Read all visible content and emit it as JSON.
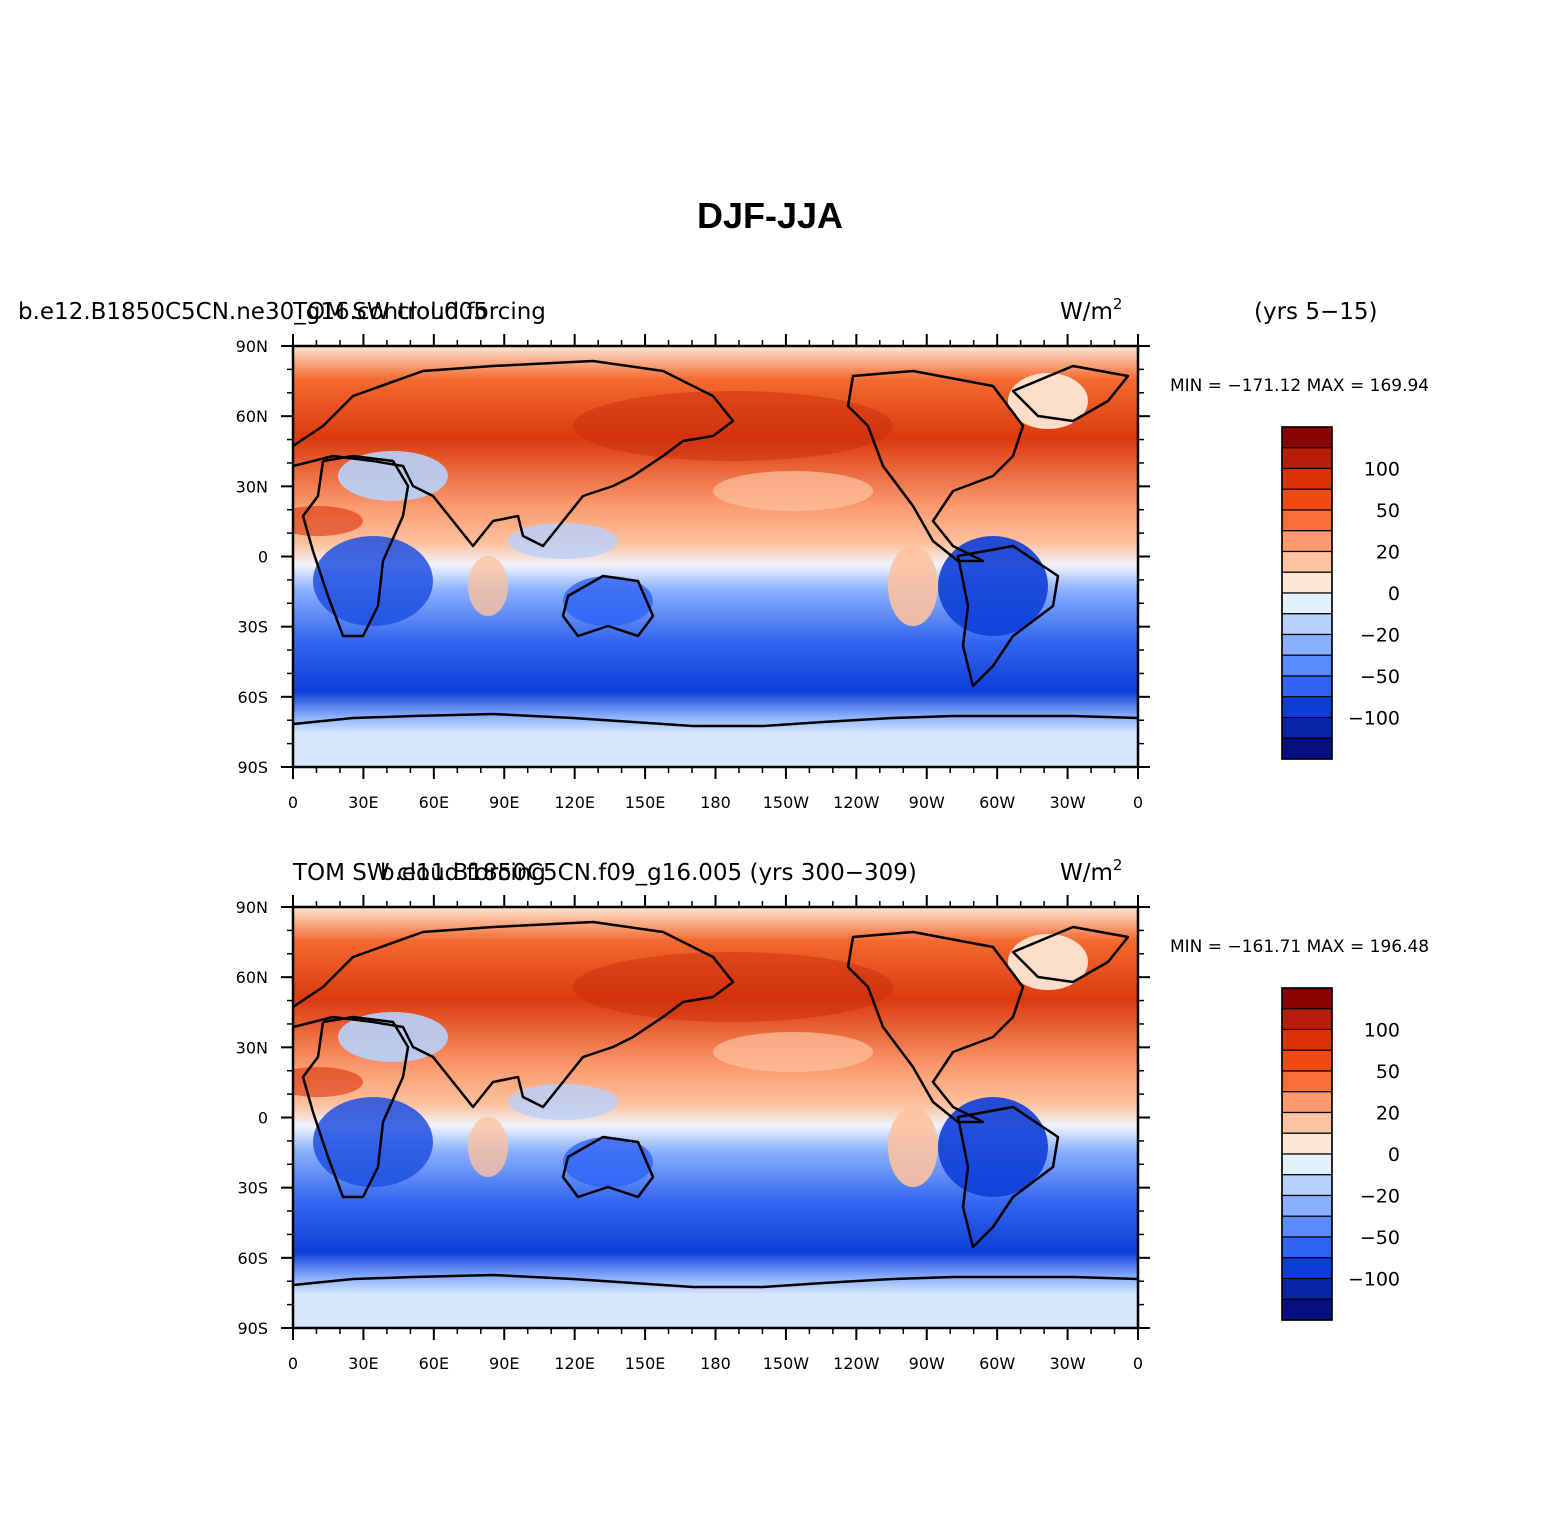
{
  "figure": {
    "title": "DJF-JJA",
    "units": "W/m",
    "units_sup": "2"
  },
  "panels": [
    {
      "id": "top",
      "case_name": "b.e12.B1850C5CN.ne30_g16.control.005",
      "variable": "TOM SW cloud forcing",
      "years": "(yrs 5−15)",
      "min_label": "MIN",
      "min_value": "−171.12",
      "max_label": "MAX",
      "max_value": "169.94"
    },
    {
      "id": "bottom",
      "case_name": "b.e11.B1850C5CN.f09_g16.005 (yrs 300−309)",
      "variable": "TOM SW cloud forcing",
      "years": "",
      "min_label": "MIN",
      "min_value": "−161.71",
      "max_label": "MAX",
      "max_value": "196.48"
    }
  ],
  "axes": {
    "lon_ticks": [
      "0",
      "30E",
      "60E",
      "90E",
      "120E",
      "150E",
      "180",
      "150W",
      "120W",
      "90W",
      "60W",
      "30W",
      "0"
    ],
    "lat_ticks": [
      "90N",
      "60N",
      "30N",
      "0",
      "30S",
      "60S",
      "90S"
    ]
  },
  "colorbar": {
    "colors": [
      "#8b0000",
      "#b81c0a",
      "#db3208",
      "#f04a14",
      "#f87038",
      "#fb9a6e",
      "#fdc2a0",
      "#fee6d4",
      "#e4f0fd",
      "#b6d1fd",
      "#8ab0fd",
      "#5a8afd",
      "#2d62f5",
      "#0e3ed8",
      "#0a24a8",
      "#050f80"
    ],
    "labels": [
      "100",
      "50",
      "20",
      "0",
      "−20",
      "−50",
      "−100"
    ]
  }
}
